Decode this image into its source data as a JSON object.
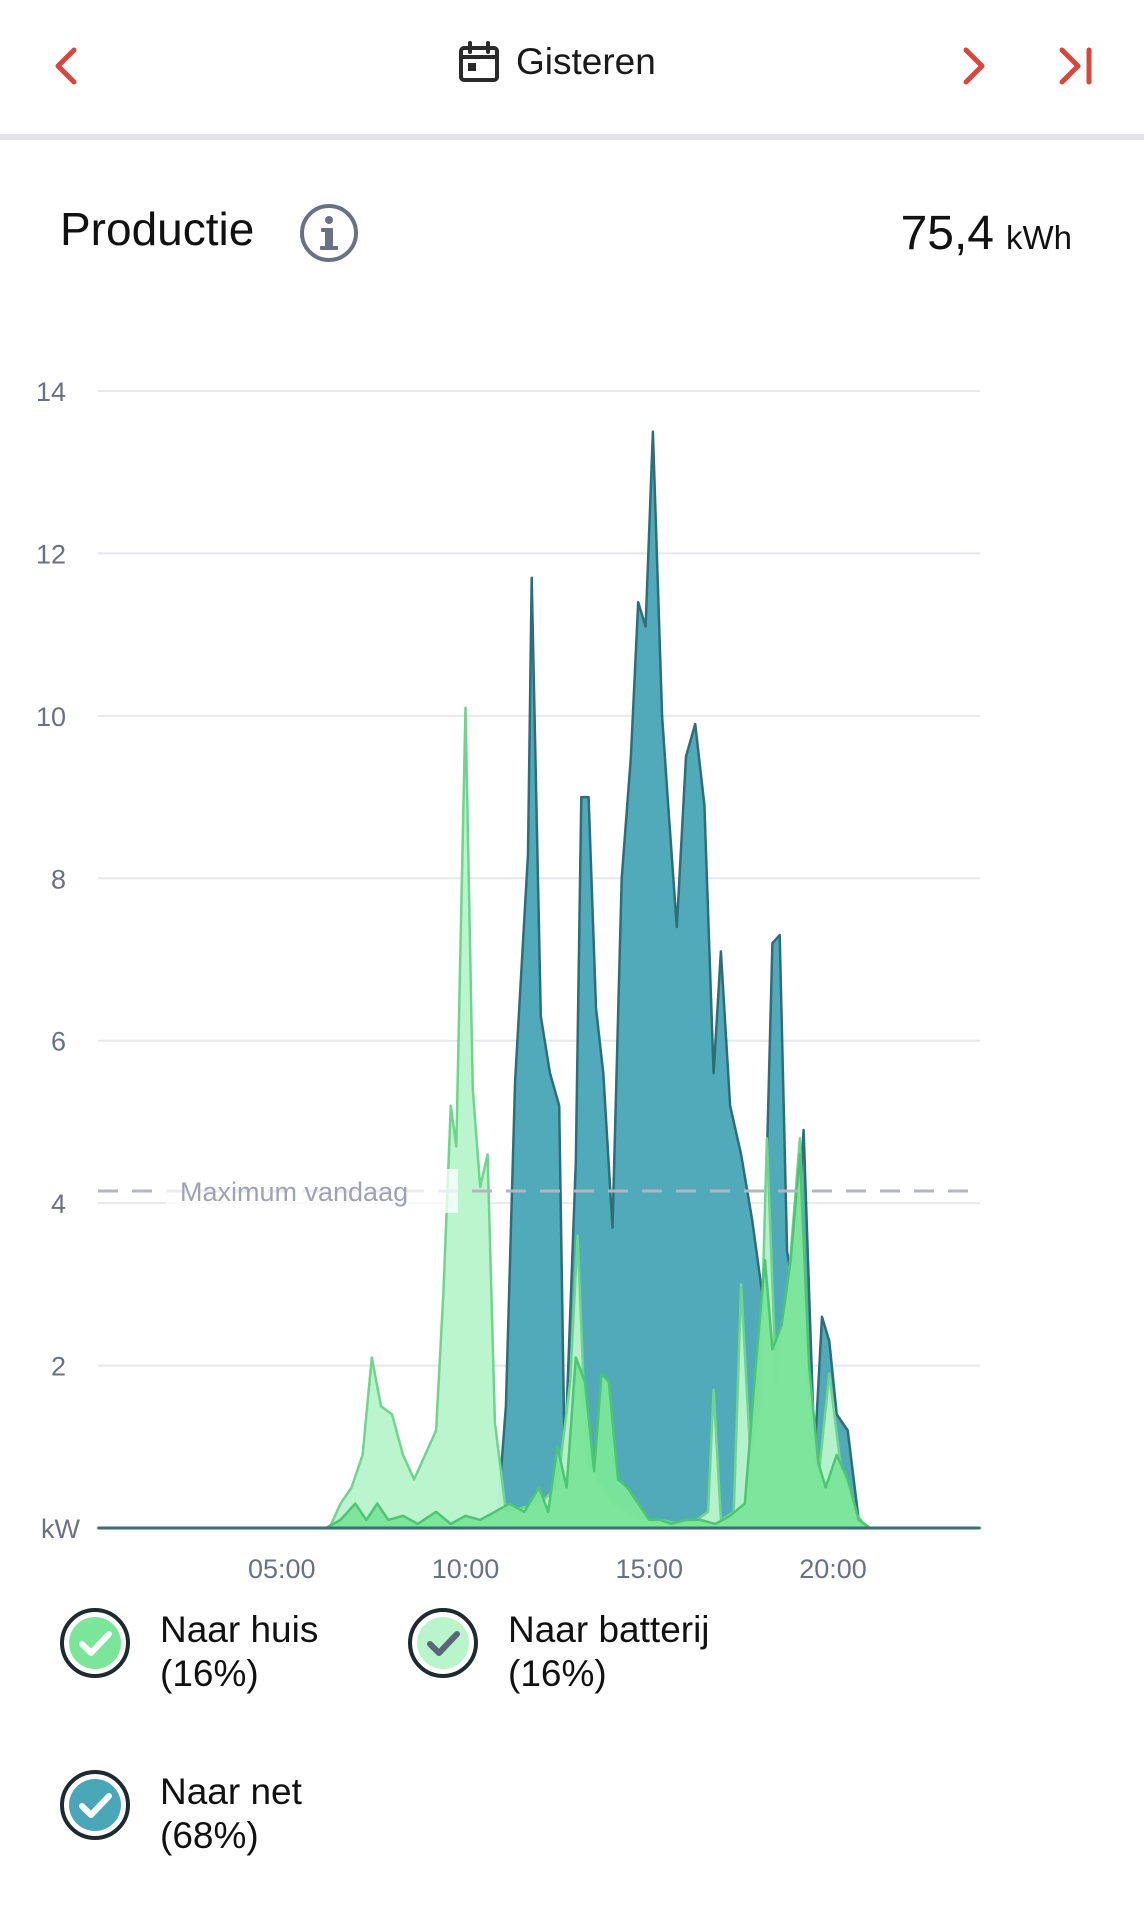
{
  "header": {
    "date_label": "Gisteren",
    "prev_icon": "chevron-left-icon",
    "next_icon": "chevron-right-icon",
    "last_icon": "skip-to-end-icon",
    "calendar_icon": "calendar-icon"
  },
  "section": {
    "title": "Productie",
    "info_icon": "info-icon",
    "total_value": "75,4",
    "total_unit": "kWh"
  },
  "colors": {
    "accent": "#d9463b",
    "house_fill": "#7be59a",
    "battery_fill": "#b9f5cb",
    "grid_fill": "#4aa7b8",
    "grid_stroke": "#2e6e7a"
  },
  "chart_data": {
    "type": "area",
    "title": "",
    "ylabel": "kW",
    "xlabel": "",
    "xlim": [
      0,
      24
    ],
    "ylim": [
      0,
      14
    ],
    "y_ticks": [
      2,
      4,
      6,
      8,
      10,
      12,
      14
    ],
    "y_tick_labels": [
      "2",
      "4",
      "6",
      "8",
      "10",
      "12",
      "14"
    ],
    "x_tick_labels": [
      {
        "x": 5,
        "label": "05:00"
      },
      {
        "x": 10,
        "label": "10:00"
      },
      {
        "x": 15,
        "label": "15:00"
      },
      {
        "x": 20,
        "label": "20:00"
      }
    ],
    "grid": true,
    "reference_line": {
      "y": 4.15,
      "label": "Maximum vandaag"
    },
    "series": [
      {
        "name": "Naar net",
        "color": "#4aa7b8",
        "points": [
          [
            0,
            0
          ],
          [
            10.85,
            0
          ],
          [
            11.1,
            1.5
          ],
          [
            11.35,
            5.5
          ],
          [
            11.7,
            8.3
          ],
          [
            11.8,
            11.7
          ],
          [
            12.05,
            6.3
          ],
          [
            12.3,
            5.6
          ],
          [
            12.55,
            5.2
          ],
          [
            12.7,
            0.8
          ],
          [
            13,
            4.5
          ],
          [
            13.15,
            9
          ],
          [
            13.35,
            9
          ],
          [
            13.55,
            6.4
          ],
          [
            13.75,
            5.6
          ],
          [
            14,
            3.7
          ],
          [
            14.25,
            8
          ],
          [
            14.5,
            9.5
          ],
          [
            14.7,
            11.4
          ],
          [
            14.9,
            11.1
          ],
          [
            15.1,
            13.5
          ],
          [
            15.35,
            10
          ],
          [
            15.5,
            9
          ],
          [
            15.75,
            7.4
          ],
          [
            16,
            9.5
          ],
          [
            16.25,
            9.9
          ],
          [
            16.5,
            8.9
          ],
          [
            16.75,
            5.6
          ],
          [
            16.95,
            7.1
          ],
          [
            17.2,
            5.2
          ],
          [
            17.5,
            4.6
          ],
          [
            17.8,
            3.8
          ],
          [
            18.1,
            2.8
          ],
          [
            18.35,
            7.2
          ],
          [
            18.55,
            7.3
          ],
          [
            18.75,
            3.4
          ],
          [
            18.95,
            2.9
          ],
          [
            19.2,
            4.9
          ],
          [
            19.5,
            0.9
          ],
          [
            19.7,
            2.6
          ],
          [
            19.9,
            2.3
          ],
          [
            20.1,
            1.4
          ],
          [
            20.4,
            1.2
          ],
          [
            20.7,
            0.1
          ],
          [
            21,
            0
          ],
          [
            24,
            0
          ]
        ]
      },
      {
        "name": "Naar batterij",
        "color": "#b9f5cb",
        "points": [
          [
            0,
            0
          ],
          [
            6.3,
            0
          ],
          [
            6.6,
            0.3
          ],
          [
            6.9,
            0.5
          ],
          [
            7.2,
            0.9
          ],
          [
            7.45,
            2.1
          ],
          [
            7.7,
            1.5
          ],
          [
            8,
            1.4
          ],
          [
            8.3,
            0.9
          ],
          [
            8.6,
            0.6
          ],
          [
            8.9,
            0.9
          ],
          [
            9.2,
            1.2
          ],
          [
            9.4,
            2.9
          ],
          [
            9.6,
            5.2
          ],
          [
            9.75,
            4.7
          ],
          [
            10,
            10.1
          ],
          [
            10.2,
            5.4
          ],
          [
            10.4,
            4.2
          ],
          [
            10.6,
            4.6
          ],
          [
            10.8,
            1.3
          ],
          [
            11.1,
            0.2
          ],
          [
            12,
            0.3
          ],
          [
            12.5,
            0.5
          ],
          [
            12.85,
            1.8
          ],
          [
            13.05,
            3.6
          ],
          [
            13.3,
            0.8
          ],
          [
            13.6,
            0.6
          ],
          [
            14,
            0.3
          ],
          [
            14.4,
            0.2
          ],
          [
            14.8,
            0.1
          ],
          [
            15.3,
            0.1
          ],
          [
            15.8,
            0.05
          ],
          [
            16.3,
            0.1
          ],
          [
            16.6,
            0.2
          ],
          [
            16.75,
            1.7
          ],
          [
            16.95,
            0.1
          ],
          [
            17.3,
            0.2
          ],
          [
            17.5,
            3
          ],
          [
            17.75,
            0.9
          ],
          [
            18,
            1.5
          ],
          [
            18.2,
            4.8
          ],
          [
            18.45,
            1.8
          ],
          [
            18.8,
            3.1
          ],
          [
            19.1,
            4.8
          ],
          [
            19.35,
            1.6
          ],
          [
            19.6,
            0.6
          ],
          [
            19.9,
            1.9
          ],
          [
            20.2,
            0.8
          ],
          [
            20.6,
            0.2
          ],
          [
            20.9,
            0
          ],
          [
            24,
            0
          ]
        ]
      },
      {
        "name": "Naar huis",
        "color": "#7be59a",
        "points": [
          [
            0,
            0
          ],
          [
            6.2,
            0
          ],
          [
            6.6,
            0.1
          ],
          [
            7,
            0.3
          ],
          [
            7.3,
            0.1
          ],
          [
            7.6,
            0.3
          ],
          [
            7.9,
            0.1
          ],
          [
            8.3,
            0.15
          ],
          [
            8.7,
            0.05
          ],
          [
            9.2,
            0.2
          ],
          [
            9.6,
            0.05
          ],
          [
            10,
            0.15
          ],
          [
            10.4,
            0.1
          ],
          [
            10.8,
            0.2
          ],
          [
            11.2,
            0.3
          ],
          [
            11.6,
            0.2
          ],
          [
            12,
            0.5
          ],
          [
            12.25,
            0.2
          ],
          [
            12.5,
            1
          ],
          [
            12.75,
            0.5
          ],
          [
            13,
            2.1
          ],
          [
            13.25,
            1.8
          ],
          [
            13.5,
            0.7
          ],
          [
            13.7,
            1.9
          ],
          [
            13.9,
            1.8
          ],
          [
            14.15,
            0.6
          ],
          [
            14.4,
            0.5
          ],
          [
            14.7,
            0.3
          ],
          [
            15,
            0.1
          ],
          [
            15.3,
            0.1
          ],
          [
            15.6,
            0.05
          ],
          [
            16,
            0.1
          ],
          [
            16.4,
            0.1
          ],
          [
            16.8,
            0.05
          ],
          [
            17.2,
            0.15
          ],
          [
            17.6,
            0.3
          ],
          [
            17.9,
            2
          ],
          [
            18.15,
            3.3
          ],
          [
            18.35,
            2.2
          ],
          [
            18.6,
            2.5
          ],
          [
            18.85,
            3.3
          ],
          [
            19.1,
            4.6
          ],
          [
            19.35,
            2
          ],
          [
            19.6,
            0.8
          ],
          [
            19.8,
            0.5
          ],
          [
            20.1,
            0.9
          ],
          [
            20.4,
            0.6
          ],
          [
            20.7,
            0.1
          ],
          [
            21,
            0
          ],
          [
            24,
            0
          ]
        ]
      }
    ]
  },
  "legend": {
    "items": [
      {
        "label": "Naar huis",
        "pct": "(16%)",
        "icon": "check-circle-icon"
      },
      {
        "label": "Naar batterij",
        "pct": "(16%)",
        "icon": "check-circle-icon"
      },
      {
        "label": "Naar net",
        "pct": "(68%)",
        "icon": "check-circle-icon"
      }
    ]
  }
}
